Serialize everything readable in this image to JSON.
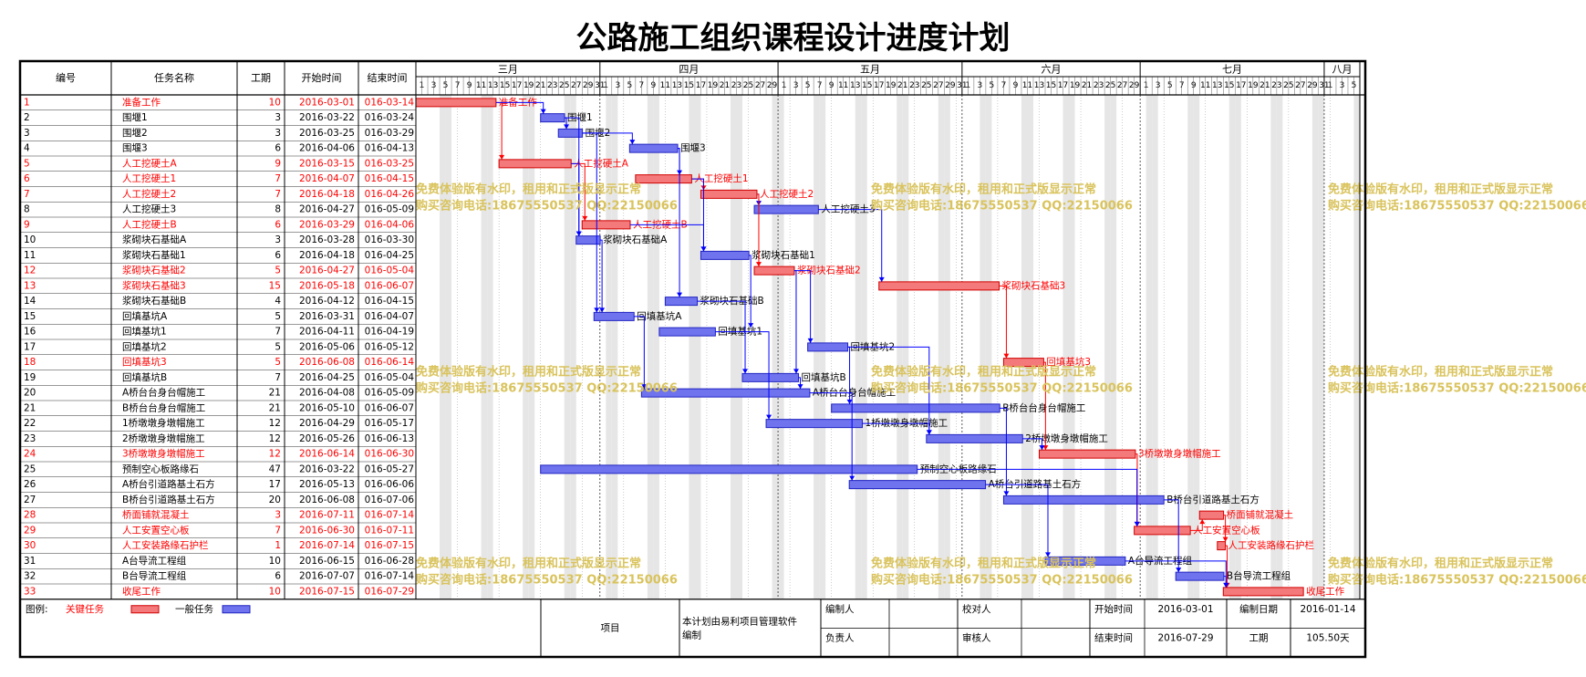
{
  "title": "公路施工组织课程设计进度计划",
  "watermark": {
    "line1": "免费体验版有水印，租用和正式版显示正常",
    "line2": "购买咨询电话:18675550537 QQ:22150066"
  },
  "table_headers": {
    "id": "编号",
    "name": "任务名称",
    "duration": "工期",
    "start": "开始时间",
    "end": "结束时间"
  },
  "colors": {
    "critical": "#ff0000",
    "critical_bar": "#f4797b",
    "normal_bar": "#6f73ee",
    "link_normal": "#0000ff",
    "link_critical": "#ff0000",
    "watermark": "#d9c35c",
    "grid_weekend": "#e6e6e6"
  },
  "legend": {
    "label": "图例:",
    "critical": "关键任务",
    "normal": "一般任务"
  },
  "footer": {
    "project_label": "项目",
    "note": "本计划由易利项目管理软件编制",
    "prepared_by": "编制人",
    "responsible": "负责人",
    "checked_by": "校对人",
    "reviewed_by": "审核人",
    "start_label": "开始时间",
    "start_value": "2016-03-01",
    "end_label": "结束时间",
    "end_value": "2016-07-29",
    "date_label": "编制日期",
    "date_value": "2016-01-14",
    "duration_label": "工期",
    "duration_value": "105.50天"
  },
  "chart_data": {
    "type": "gantt",
    "timeline_start": "2016-03-01",
    "timeline_end": "2016-08-06",
    "months": [
      {
        "label": "三月",
        "days": 31
      },
      {
        "label": "四月",
        "days": 30
      },
      {
        "label": "五月",
        "days": 31
      },
      {
        "label": "六月",
        "days": 30
      },
      {
        "label": "七月",
        "days": 31
      },
      {
        "label": "八月",
        "days": 6
      }
    ],
    "tasks": [
      {
        "id": "1",
        "name": "准备工作",
        "duration": "10",
        "start": "2016-03-01",
        "end": "016-03-14",
        "critical": true
      },
      {
        "id": "2",
        "name": "围堰1",
        "duration": "3",
        "start": "2016-03-22",
        "end": "016-03-24",
        "critical": false
      },
      {
        "id": "3",
        "name": "围堰2",
        "duration": "3",
        "start": "2016-03-25",
        "end": "016-03-29",
        "critical": false
      },
      {
        "id": "4",
        "name": "围堰3",
        "duration": "6",
        "start": "2016-04-06",
        "end": "016-04-13",
        "critical": false
      },
      {
        "id": "5",
        "name": "人工挖硬土A",
        "duration": "9",
        "start": "2016-03-15",
        "end": "016-03-25",
        "critical": true
      },
      {
        "id": "6",
        "name": "人工挖硬土1",
        "duration": "7",
        "start": "2016-04-07",
        "end": "016-04-15",
        "critical": true
      },
      {
        "id": "7",
        "name": "人工挖硬土2",
        "duration": "7",
        "start": "2016-04-18",
        "end": "016-04-26",
        "critical": true
      },
      {
        "id": "8",
        "name": "人工挖硬土3",
        "duration": "8",
        "start": "2016-04-27",
        "end": "016-05-09",
        "critical": false
      },
      {
        "id": "9",
        "name": "人工挖硬土B",
        "duration": "6",
        "start": "2016-03-29",
        "end": "016-04-06",
        "critical": true
      },
      {
        "id": "10",
        "name": "浆砌块石基础A",
        "duration": "3",
        "start": "2016-03-28",
        "end": "016-03-30",
        "critical": false
      },
      {
        "id": "11",
        "name": "浆砌块石基础1",
        "duration": "6",
        "start": "2016-04-18",
        "end": "016-04-25",
        "critical": false
      },
      {
        "id": "12",
        "name": "浆砌块石基础2",
        "duration": "5",
        "start": "2016-04-27",
        "end": "016-05-04",
        "critical": true
      },
      {
        "id": "13",
        "name": "浆砌块石基础3",
        "duration": "15",
        "start": "2016-05-18",
        "end": "016-06-07",
        "critical": true
      },
      {
        "id": "14",
        "name": "浆砌块石基础B",
        "duration": "4",
        "start": "2016-04-12",
        "end": "016-04-15",
        "critical": false
      },
      {
        "id": "15",
        "name": "回填基坑A",
        "duration": "5",
        "start": "2016-03-31",
        "end": "016-04-07",
        "critical": false
      },
      {
        "id": "16",
        "name": "回填基坑1",
        "duration": "7",
        "start": "2016-04-11",
        "end": "016-04-19",
        "critical": false
      },
      {
        "id": "17",
        "name": "回填基坑2",
        "duration": "5",
        "start": "2016-05-06",
        "end": "016-05-12",
        "critical": false
      },
      {
        "id": "18",
        "name": "回填基坑3",
        "duration": "5",
        "start": "2016-06-08",
        "end": "016-06-14",
        "critical": true
      },
      {
        "id": "19",
        "name": "回填基坑B",
        "duration": "7",
        "start": "2016-04-25",
        "end": "016-05-04",
        "critical": false
      },
      {
        "id": "20",
        "name": "A桥台台身台帽施工",
        "duration": "21",
        "start": "2016-04-08",
        "end": "016-05-09",
        "critical": false
      },
      {
        "id": "21",
        "name": "B桥台台身台帽施工",
        "duration": "21",
        "start": "2016-05-10",
        "end": "016-06-07",
        "critical": false
      },
      {
        "id": "22",
        "name": "1桥墩墩身墩帽施工",
        "duration": "12",
        "start": "2016-04-29",
        "end": "016-05-17",
        "critical": false
      },
      {
        "id": "23",
        "name": "2桥墩墩身墩帽施工",
        "duration": "12",
        "start": "2016-05-26",
        "end": "016-06-13",
        "critical": false
      },
      {
        "id": "24",
        "name": "3桥墩墩身墩帽施工",
        "duration": "12",
        "start": "2016-06-14",
        "end": "016-06-30",
        "critical": true
      },
      {
        "id": "25",
        "name": "预制空心板路缘石",
        "duration": "47",
        "start": "2016-03-22",
        "end": "016-05-27",
        "critical": false
      },
      {
        "id": "26",
        "name": "A桥台引道路基土石方",
        "duration": "17",
        "start": "2016-05-13",
        "end": "016-06-06",
        "critical": false
      },
      {
        "id": "27",
        "name": "B桥台引道路基土石方",
        "duration": "20",
        "start": "2016-06-08",
        "end": "016-07-06",
        "critical": false
      },
      {
        "id": "28",
        "name": "桥面铺就混凝土",
        "duration": "3",
        "start": "2016-07-11",
        "end": "016-07-14",
        "critical": true
      },
      {
        "id": "29",
        "name": "人工安置空心板",
        "duration": "7",
        "start": "2016-06-30",
        "end": "016-07-11",
        "critical": true
      },
      {
        "id": "30",
        "name": "人工安装路缘石护栏",
        "duration": "1",
        "start": "2016-07-14",
        "end": "016-07-15",
        "critical": true
      },
      {
        "id": "31",
        "name": "A台导流工程组",
        "duration": "10",
        "start": "2016-06-15",
        "end": "016-06-28",
        "critical": false
      },
      {
        "id": "32",
        "name": "B台导流工程组",
        "duration": "6",
        "start": "2016-07-07",
        "end": "016-07-14",
        "critical": false
      },
      {
        "id": "33",
        "name": "收尾工作",
        "duration": "10",
        "start": "2016-07-15",
        "end": "016-07-29",
        "critical": true
      }
    ],
    "links": [
      [
        1,
        5
      ],
      [
        1,
        2
      ],
      [
        2,
        3
      ],
      [
        2,
        10
      ],
      [
        3,
        4
      ],
      [
        3,
        15
      ],
      [
        4,
        6
      ],
      [
        4,
        14
      ],
      [
        5,
        9
      ],
      [
        5,
        10
      ],
      [
        6,
        7
      ],
      [
        6,
        11
      ],
      [
        7,
        8
      ],
      [
        7,
        12
      ],
      [
        8,
        13
      ],
      [
        9,
        11
      ],
      [
        10,
        15
      ],
      [
        11,
        16
      ],
      [
        12,
        17
      ],
      [
        12,
        19
      ],
      [
        13,
        18
      ],
      [
        14,
        19
      ],
      [
        15,
        20
      ],
      [
        16,
        22
      ],
      [
        17,
        21
      ],
      [
        17,
        23
      ],
      [
        18,
        24
      ],
      [
        19,
        20
      ],
      [
        20,
        26
      ],
      [
        21,
        27
      ],
      [
        22,
        23
      ],
      [
        23,
        24
      ],
      [
        24,
        29
      ],
      [
        25,
        29
      ],
      [
        26,
        31
      ],
      [
        27,
        32
      ],
      [
        29,
        28
      ],
      [
        28,
        30
      ],
      [
        30,
        33
      ],
      [
        31,
        33
      ],
      [
        32,
        33
      ]
    ]
  }
}
